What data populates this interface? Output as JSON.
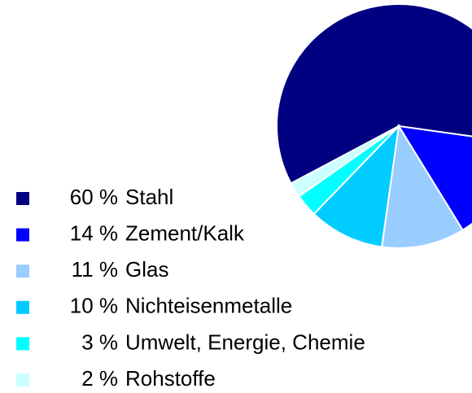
{
  "chart_data": {
    "type": "pie",
    "categories": [
      "Stahl",
      "Zement/Kalk",
      "Glas",
      "Nichteisenmetalle",
      "Umwelt, Energie, Chemie",
      "Rohstoffe"
    ],
    "values": [
      60,
      14,
      11,
      10,
      3,
      2
    ],
    "value_labels": [
      "60 %",
      "14 %",
      "11 %",
      "10 %",
      "3 %",
      "2 %"
    ],
    "colors": [
      "#000080",
      "#0000ff",
      "#99ccff",
      "#00ccff",
      "#00ffff",
      "#ccffff"
    ],
    "legend": "left"
  }
}
